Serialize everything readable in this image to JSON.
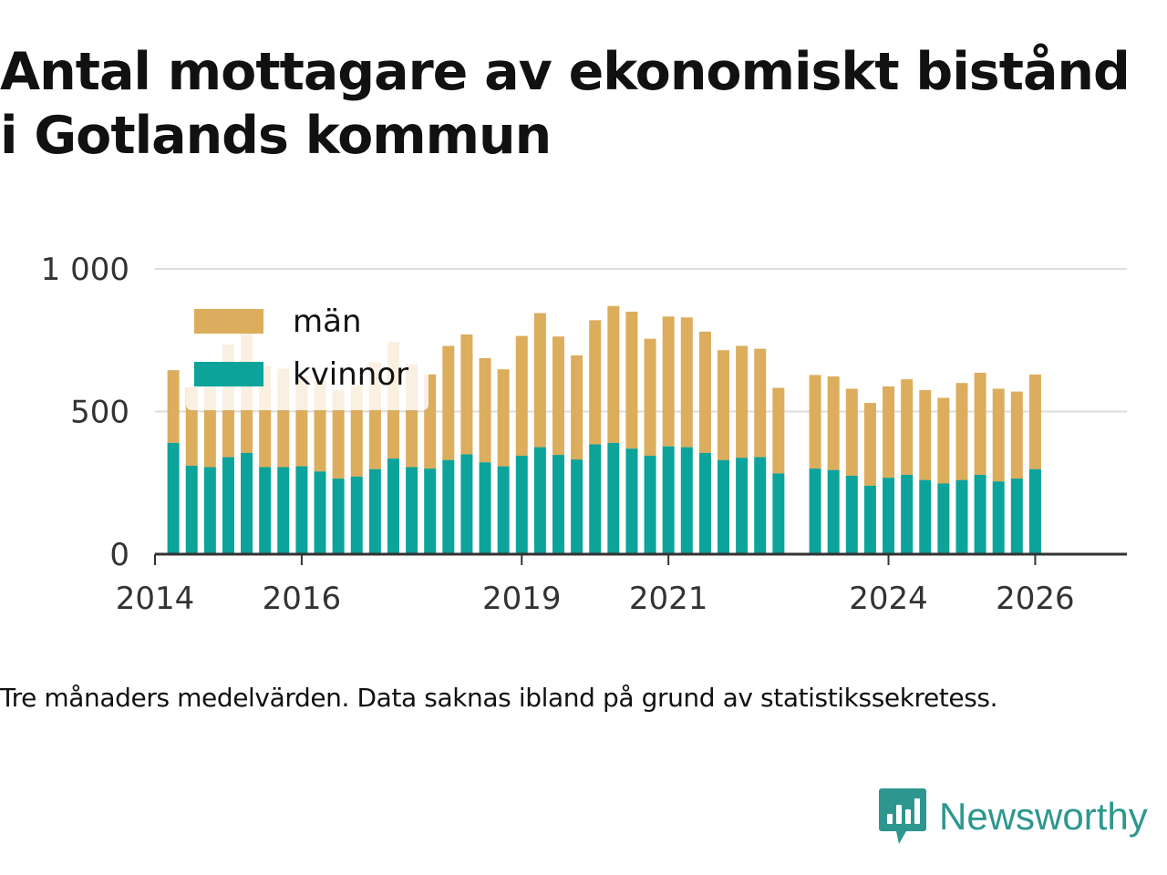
{
  "title_line1": "Antal mottagare av ekonomiskt bistånd",
  "title_line2": "i Gotlands kommun",
  "caption": "Tre månaders medelvärden. Data saknas ibland på grund av statistikssekretess.",
  "brand": {
    "name": "Newsworthy",
    "icon": "newsworthy-logo-icon",
    "color": "#2d978f"
  },
  "colors": {
    "man": "#dcad5c",
    "kvinnor": "#0ca39b",
    "grid": "#dddddd",
    "axis": "#333333",
    "text": "#333333"
  },
  "chart_data": {
    "type": "bar",
    "stacked": true,
    "title": "Antal mottagare av ekonomiskt bistånd i Gotlands kommun",
    "xlabel": "",
    "ylabel": "",
    "ylim": [
      0,
      1000
    ],
    "yticks": [
      0,
      500,
      1000
    ],
    "ytick_labels": [
      "0",
      "500",
      "1 000"
    ],
    "xticks": [
      2014,
      2016,
      2019,
      2021,
      2024,
      2026
    ],
    "xtick_labels": [
      "2014",
      "2016",
      "2019",
      "2021",
      "2024",
      "2026"
    ],
    "xlim": [
      2014.0,
      2027.25
    ],
    "legend": {
      "placement": "top-left",
      "entries": [
        "män",
        "kvinnor"
      ]
    },
    "categories": [
      2014.25,
      2014.5,
      2014.75,
      2015.0,
      2015.25,
      2015.5,
      2015.75,
      2016.0,
      2016.25,
      2016.5,
      2016.75,
      2017.0,
      2017.25,
      2017.5,
      2017.75,
      2018.0,
      2018.25,
      2018.5,
      2018.75,
      2019.0,
      2019.25,
      2019.5,
      2019.75,
      2020.0,
      2020.25,
      2020.5,
      2020.75,
      2021.0,
      2021.25,
      2021.5,
      2021.75,
      2022.0,
      2022.25,
      2022.5,
      2023.0,
      2023.25,
      2023.5,
      2023.75,
      2024.0,
      2024.25,
      2024.5,
      2024.75,
      2025.0,
      2025.25,
      2025.5,
      2025.75,
      2026.0
    ],
    "series": [
      {
        "name": "kvinnor",
        "values": [
          390,
          310,
          305,
          340,
          355,
          305,
          305,
          308,
          290,
          265,
          272,
          298,
          335,
          305,
          300,
          330,
          350,
          322,
          308,
          345,
          375,
          348,
          332,
          385,
          390,
          370,
          345,
          378,
          375,
          355,
          330,
          338,
          340,
          283,
          300,
          295,
          275,
          240,
          268,
          278,
          260,
          248,
          260,
          278,
          255,
          265,
          298
        ]
      },
      {
        "name": "män",
        "values": [
          255,
          275,
          340,
          395,
          425,
          355,
          345,
          315,
          320,
          310,
          320,
          375,
          410,
          360,
          330,
          400,
          420,
          365,
          340,
          420,
          470,
          415,
          365,
          435,
          480,
          480,
          410,
          455,
          455,
          425,
          385,
          392,
          380,
          300,
          328,
          328,
          305,
          290,
          320,
          335,
          315,
          300,
          340,
          358,
          325,
          305,
          332
        ]
      }
    ]
  }
}
